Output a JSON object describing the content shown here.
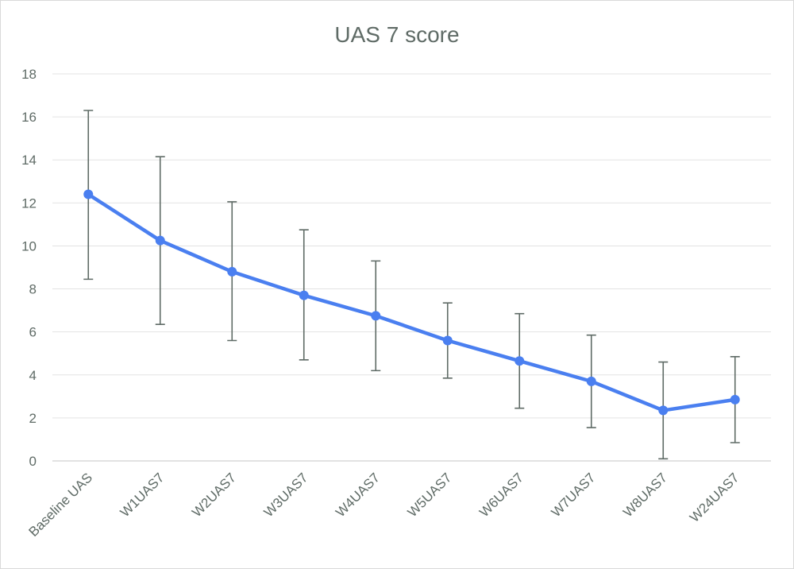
{
  "chart_data": {
    "type": "line",
    "title": "UAS 7 score",
    "xlabel": "",
    "ylabel": "",
    "categories": [
      "Baseline UAS",
      "W1UAS7",
      "W2UAS7",
      "W3UAS7",
      "W4UAS7",
      "W5UAS7",
      "W6UAS7",
      "W7UAS7",
      "W8UAS7",
      "W24UAS7"
    ],
    "series": [
      {
        "values": [
          12.4,
          10.25,
          8.8,
          7.7,
          6.75,
          5.6,
          4.65,
          3.7,
          2.35,
          2.85
        ],
        "error_low": [
          8.45,
          6.35,
          5.6,
          4.7,
          4.2,
          3.85,
          2.45,
          1.55,
          0.1,
          0.85
        ],
        "error_high": [
          16.3,
          14.15,
          12.05,
          10.75,
          9.3,
          7.35,
          6.85,
          5.85,
          4.6,
          4.85
        ]
      }
    ],
    "ylim": [
      0,
      18
    ],
    "yticks": [
      0,
      2,
      4,
      6,
      8,
      10,
      12,
      14,
      16,
      18
    ],
    "grid": true,
    "legend": "none",
    "colors": {
      "series": "#4a7ff0",
      "errorbar": "#5f6b66",
      "text": "#5f6b66",
      "grid": "#e3e3e3"
    }
  }
}
